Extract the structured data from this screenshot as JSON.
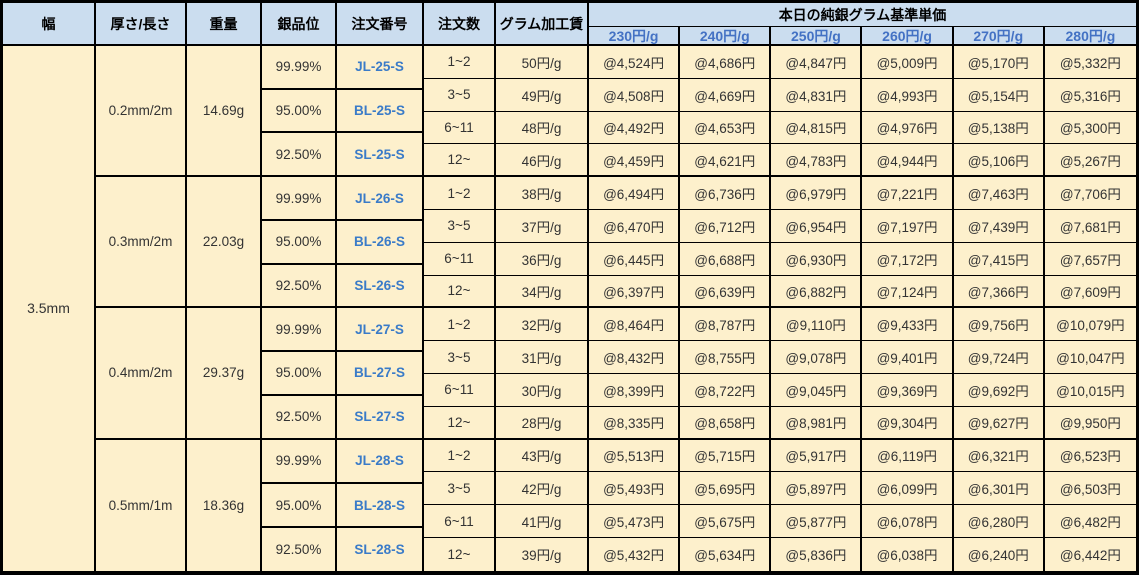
{
  "title": "本日の純銀グラム基準単価",
  "columns": [
    "幅",
    "厚さ/長さ",
    "重量",
    "銀品位",
    "注文番号",
    "注文数",
    "グラム加工賃"
  ],
  "price_columns": [
    "230円/g",
    "240円/g",
    "250円/g",
    "260円/g",
    "270円/g",
    "280円/g"
  ],
  "width_label": "3.5mm",
  "colors": {
    "header_bg": "#CBDDEF",
    "body_bg": "#FDF0CC",
    "price_header_text": "#4472C4",
    "order_no_text": "#3A7BC8",
    "border": "#000000"
  },
  "groups": [
    {
      "size": "0.2mm/2m",
      "weight": "14.69g",
      "purities": [
        {
          "purity": "99.99%",
          "order_no": "JL-25-S"
        },
        {
          "purity": "95.00%",
          "order_no": "BL-25-S"
        },
        {
          "purity": "92.50%",
          "order_no": "SL-25-S"
        }
      ],
      "rows": [
        {
          "qty": "1~2",
          "fee": "50円/g",
          "prices": [
            "@4,524円",
            "@4,686円",
            "@4,847円",
            "@5,009円",
            "@5,170円",
            "@5,332円"
          ]
        },
        {
          "qty": "3~5",
          "fee": "49円/g",
          "prices": [
            "@4,508円",
            "@4,669円",
            "@4,831円",
            "@4,993円",
            "@5,154円",
            "@5,316円"
          ]
        },
        {
          "qty": "6~11",
          "fee": "48円/g",
          "prices": [
            "@4,492円",
            "@4,653円",
            "@4,815円",
            "@4,976円",
            "@5,138円",
            "@5,300円"
          ]
        },
        {
          "qty": "12~",
          "fee": "46円/g",
          "prices": [
            "@4,459円",
            "@4,621円",
            "@4,783円",
            "@4,944円",
            "@5,106円",
            "@5,267円"
          ]
        }
      ]
    },
    {
      "size": "0.3mm/2m",
      "weight": "22.03g",
      "purities": [
        {
          "purity": "99.99%",
          "order_no": "JL-26-S"
        },
        {
          "purity": "95.00%",
          "order_no": "BL-26-S"
        },
        {
          "purity": "92.50%",
          "order_no": "SL-26-S"
        }
      ],
      "rows": [
        {
          "qty": "1~2",
          "fee": "38円/g",
          "prices": [
            "@6,494円",
            "@6,736円",
            "@6,979円",
            "@7,221円",
            "@7,463円",
            "@7,706円"
          ]
        },
        {
          "qty": "3~5",
          "fee": "37円/g",
          "prices": [
            "@6,470円",
            "@6,712円",
            "@6,954円",
            "@7,197円",
            "@7,439円",
            "@7,681円"
          ]
        },
        {
          "qty": "6~11",
          "fee": "36円/g",
          "prices": [
            "@6,445円",
            "@6,688円",
            "@6,930円",
            "@7,172円",
            "@7,415円",
            "@7,657円"
          ]
        },
        {
          "qty": "12~",
          "fee": "34円/g",
          "prices": [
            "@6,397円",
            "@6,639円",
            "@6,882円",
            "@7,124円",
            "@7,366円",
            "@7,609円"
          ]
        }
      ]
    },
    {
      "size": "0.4mm/2m",
      "weight": "29.37g",
      "purities": [
        {
          "purity": "99.99%",
          "order_no": "JL-27-S"
        },
        {
          "purity": "95.00%",
          "order_no": "BL-27-S"
        },
        {
          "purity": "92.50%",
          "order_no": "SL-27-S"
        }
      ],
      "rows": [
        {
          "qty": "1~2",
          "fee": "32円/g",
          "prices": [
            "@8,464円",
            "@8,787円",
            "@9,110円",
            "@9,433円",
            "@9,756円",
            "@10,079円"
          ]
        },
        {
          "qty": "3~5",
          "fee": "31円/g",
          "prices": [
            "@8,432円",
            "@8,755円",
            "@9,078円",
            "@9,401円",
            "@9,724円",
            "@10,047円"
          ]
        },
        {
          "qty": "6~11",
          "fee": "30円/g",
          "prices": [
            "@8,399円",
            "@8,722円",
            "@9,045円",
            "@9,369円",
            "@9,692円",
            "@10,015円"
          ]
        },
        {
          "qty": "12~",
          "fee": "28円/g",
          "prices": [
            "@8,335円",
            "@8,658円",
            "@8,981円",
            "@9,304円",
            "@9,627円",
            "@9,950円"
          ]
        }
      ]
    },
    {
      "size": "0.5mm/1m",
      "weight": "18.36g",
      "purities": [
        {
          "purity": "99.99%",
          "order_no": "JL-28-S"
        },
        {
          "purity": "95.00%",
          "order_no": "BL-28-S"
        },
        {
          "purity": "92.50%",
          "order_no": "SL-28-S"
        }
      ],
      "rows": [
        {
          "qty": "1~2",
          "fee": "43円/g",
          "prices": [
            "@5,513円",
            "@5,715円",
            "@5,917円",
            "@6,119円",
            "@6,321円",
            "@6,523円"
          ]
        },
        {
          "qty": "3~5",
          "fee": "42円/g",
          "prices": [
            "@5,493円",
            "@5,695円",
            "@5,897円",
            "@6,099円",
            "@6,301円",
            "@6,503円"
          ]
        },
        {
          "qty": "6~11",
          "fee": "41円/g",
          "prices": [
            "@5,473円",
            "@5,675円",
            "@5,877円",
            "@6,078円",
            "@6,280円",
            "@6,482円"
          ]
        },
        {
          "qty": "12~",
          "fee": "39円/g",
          "prices": [
            "@5,432円",
            "@5,634円",
            "@5,836円",
            "@6,038円",
            "@6,240円",
            "@6,442円"
          ]
        }
      ]
    }
  ]
}
